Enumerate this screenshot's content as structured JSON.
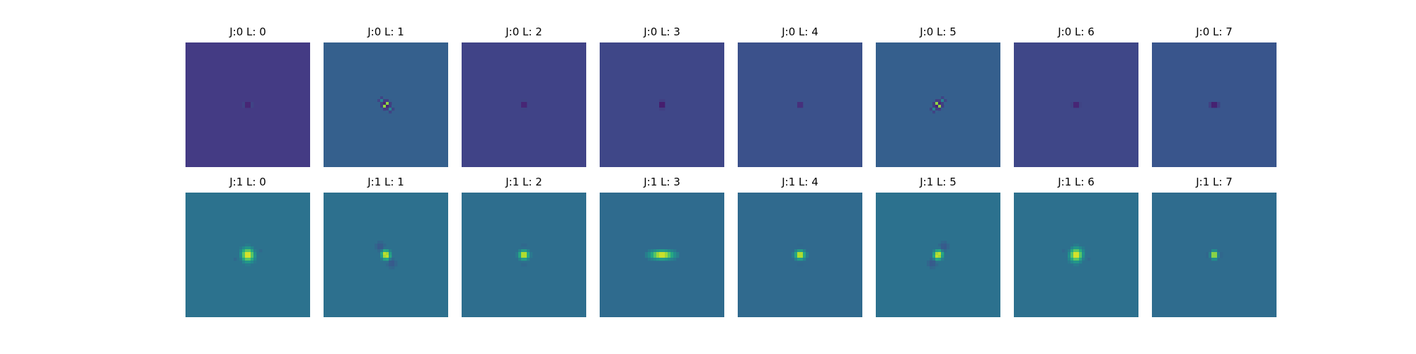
{
  "chart_data": {
    "type": "heatmap",
    "description_colormap": "viridis",
    "colormap_stops": [
      "#440154",
      "#472d7b",
      "#3b528b",
      "#2c728e",
      "#21918c",
      "#28ae80",
      "#5ec962",
      "#addc30",
      "#fde725"
    ],
    "rows": [
      {
        "J": 0,
        "panels": [
          {
            "title": "J:0 L: 0",
            "L": 0,
            "background": "#443b84",
            "sigma": 2.2,
            "freq": 0.23,
            "angle_deg": 0,
            "shape": "dot-h",
            "amplitude": 1.0
          },
          {
            "title": "J:0 L: 1",
            "L": 1,
            "background": "#35608d",
            "sigma": 4.0,
            "freq": 0.23,
            "angle_deg": 45,
            "shape": "gabor",
            "amplitude": 1.0
          },
          {
            "title": "J:0 L: 2",
            "L": 2,
            "background": "#404387",
            "sigma": 2.2,
            "freq": 0.23,
            "angle_deg": 90,
            "shape": "dot-v",
            "amplitude": 1.0
          },
          {
            "title": "J:0 L: 3",
            "L": 3,
            "background": "#3f4788",
            "sigma": 2.6,
            "freq": 0.23,
            "angle_deg": 90,
            "shape": "dot-v",
            "amplitude": 1.0
          },
          {
            "title": "J:0 L: 4",
            "L": 4,
            "background": "#3b518b",
            "sigma": 1.8,
            "freq": 0.23,
            "angle_deg": 90,
            "shape": "dot-v",
            "amplitude": 1.0
          },
          {
            "title": "J:0 L: 5",
            "L": 5,
            "background": "#355f8d",
            "sigma": 4.0,
            "freq": 0.23,
            "angle_deg": -45,
            "shape": "gabor",
            "amplitude": 1.0
          },
          {
            "title": "J:0 L: 6",
            "L": 6,
            "background": "#3f4788",
            "sigma": 2.2,
            "freq": 0.23,
            "angle_deg": 0,
            "shape": "dot-h",
            "amplitude": 1.0
          },
          {
            "title": "J:0 L: 7",
            "L": 7,
            "background": "#39558c",
            "sigma": 2.4,
            "freq": 0.23,
            "angle_deg": 0,
            "shape": "dot-h",
            "amplitude": 1.0
          }
        ]
      },
      {
        "J": 1,
        "panels": [
          {
            "title": "J:1 L: 0",
            "L": 0,
            "background": "#2c728e",
            "sigma": 14,
            "freq": 0.075,
            "angle_deg": 160,
            "shape": "gabor",
            "amplitude": 1.0
          },
          {
            "title": "J:1 L: 1",
            "L": 1,
            "background": "#2d708e",
            "sigma": 11,
            "freq": 0.11,
            "angle_deg": 55,
            "shape": "gabor-elong",
            "amplitude": 1.0
          },
          {
            "title": "J:1 L: 2",
            "L": 2,
            "background": "#2e6e8e",
            "sigma": 10,
            "freq": 0.11,
            "angle_deg": 90,
            "shape": "gabor",
            "amplitude": 1.0
          },
          {
            "title": "J:1 L: 3",
            "L": 3,
            "background": "#2f6b8e",
            "sigma": 12,
            "freq": 0.11,
            "angle_deg": 90,
            "shape": "gabor-wide",
            "amplitude": 1.0
          },
          {
            "title": "J:1 L: 4",
            "L": 4,
            "background": "#306a8e",
            "sigma": 10,
            "freq": 0.11,
            "angle_deg": 90,
            "shape": "gabor",
            "amplitude": 1.0
          },
          {
            "title": "J:1 L: 5",
            "L": 5,
            "background": "#2c718e",
            "sigma": 11,
            "freq": 0.11,
            "angle_deg": -55,
            "shape": "gabor-elong",
            "amplitude": 1.0
          },
          {
            "title": "J:1 L: 6",
            "L": 6,
            "background": "#2d708e",
            "sigma": 14,
            "freq": 0.075,
            "angle_deg": 20,
            "shape": "gabor",
            "amplitude": 1.0
          },
          {
            "title": "J:1 L: 7",
            "L": 7,
            "background": "#2f6c8e",
            "sigma": 8,
            "freq": 0.14,
            "angle_deg": 0,
            "shape": "gabor",
            "amplitude": 1.0
          }
        ]
      }
    ]
  }
}
